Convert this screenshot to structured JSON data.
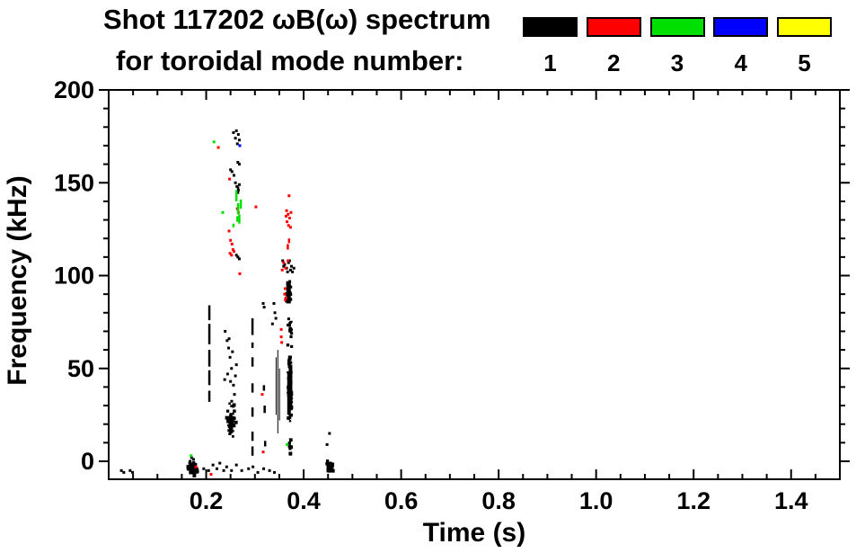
{
  "header": {
    "title": "Shot 117202 ωB(ω) spectrum",
    "subtitle": "for toroidal mode number:"
  },
  "legend": {
    "entries": [
      {
        "label": "1",
        "color": "#000000"
      },
      {
        "label": "2",
        "color": "#ff0000"
      },
      {
        "label": "3",
        "color": "#00e000"
      },
      {
        "label": "4",
        "color": "#0000ff"
      },
      {
        "label": "5",
        "color": "#ffff00"
      }
    ]
  },
  "chart_data": {
    "type": "scatter",
    "title": "Shot 117202 ωB(ω) spectrum",
    "subtitle": "for toroidal mode number:",
    "xlabel": "Time (s)",
    "ylabel": "Frequency (kHz)",
    "xlim": [
      0,
      1.5
    ],
    "ylim": [
      -9.7,
      200
    ],
    "grid": false,
    "legend_position": "top-right-above-plot",
    "x_major_ticks": [
      0.2,
      0.4,
      0.6,
      0.8,
      1.0,
      1.2,
      1.4
    ],
    "x_tick_labels": [
      "0.2",
      "0.4",
      "0.6",
      "0.8",
      "1.0",
      "1.2",
      "1.4"
    ],
    "x_minor_step": 0.05,
    "y_major_ticks": [
      0,
      50,
      100,
      150,
      200
    ],
    "y_tick_labels": [
      "0",
      "50",
      "100",
      "150",
      "200"
    ],
    "y_minor_step": 10,
    "series": [
      {
        "name": "1",
        "color": "#000000",
        "points": [
          [
            0.256,
            177
          ],
          [
            0.262,
            178
          ],
          [
            0.266,
            176
          ],
          [
            0.268,
            173
          ],
          [
            0.26,
            174
          ],
          [
            0.264,
            171
          ],
          [
            0.265,
            161
          ],
          [
            0.268,
            160
          ],
          [
            0.25,
            157
          ],
          [
            0.253,
            156
          ],
          [
            0.257,
            154
          ],
          [
            0.26,
            150
          ],
          [
            0.263,
            148
          ],
          [
            0.266,
            146
          ],
          [
            0.268,
            149
          ],
          [
            0.262,
            111
          ],
          [
            0.265,
            110
          ],
          [
            0.268,
            109
          ],
          [
            0.357,
            108
          ],
          [
            0.361,
            106
          ],
          [
            0.365,
            104
          ],
          [
            0.369,
            107
          ],
          [
            0.373,
            103
          ],
          [
            0.367,
            102
          ],
          [
            0.359,
            105
          ],
          [
            0.375,
            105
          ],
          [
            0.371,
            108
          ],
          [
            0.377,
            102
          ],
          [
            0.38,
            104
          ],
          [
            0.317,
            85
          ],
          [
            0.319,
            83
          ],
          [
            0.339,
            85
          ],
          [
            0.341,
            80
          ],
          [
            0.343,
            77
          ],
          [
            0.336,
            74
          ],
          [
            0.239,
            70
          ],
          [
            0.247,
            66
          ],
          [
            0.243,
            65
          ],
          [
            0.246,
            61
          ],
          [
            0.254,
            59
          ],
          [
            0.249,
            56
          ],
          [
            0.252,
            50
          ],
          [
            0.244,
            47
          ],
          [
            0.238,
            44
          ],
          [
            0.25,
            43
          ],
          [
            0.256,
            41
          ],
          [
            0.26,
            46
          ],
          [
            0.262,
            52
          ],
          [
            0.258,
            36
          ],
          [
            0.17,
            2
          ],
          [
            0.167,
            0
          ],
          [
            0.174,
            1
          ],
          [
            0.026,
            -5
          ],
          [
            0.031,
            -6
          ],
          [
            0.044,
            -5
          ],
          [
            0.049,
            -6
          ],
          [
            0.195,
            -4
          ],
          [
            0.205,
            -5
          ],
          [
            0.214,
            -2
          ],
          [
            0.222,
            -4
          ],
          [
            0.228,
            -1
          ],
          [
            0.236,
            -5
          ],
          [
            0.242,
            -3
          ],
          [
            0.252,
            -5
          ],
          [
            0.262,
            -2
          ],
          [
            0.273,
            -5
          ],
          [
            0.287,
            -4
          ],
          [
            0.296,
            -3
          ],
          [
            0.306,
            -6
          ],
          [
            0.318,
            -4
          ],
          [
            0.33,
            -5
          ],
          [
            0.34,
            -6
          ],
          [
            0.453,
            15
          ],
          [
            0.448,
            9
          ]
        ],
        "segments": [
          [
            0.2065,
            76,
            84
          ],
          [
            0.2065,
            63,
            74
          ],
          [
            0.2065,
            51,
            60
          ],
          [
            0.2065,
            41,
            49
          ],
          [
            0.2065,
            32,
            38
          ],
          [
            0.295,
            68,
            77
          ],
          [
            0.295,
            61,
            64
          ],
          [
            0.295,
            51,
            56
          ],
          [
            0.295,
            37,
            42
          ],
          [
            0.295,
            24,
            29
          ],
          [
            0.295,
            11,
            16
          ],
          [
            0.295,
            3,
            8
          ],
          [
            0.3185,
            38,
            41
          ],
          [
            0.32,
            26,
            30
          ],
          [
            0.321,
            8,
            11
          ],
          [
            0.3435,
            25,
            56,
            1
          ],
          [
            0.347,
            15,
            60,
            1
          ],
          [
            0.3505,
            22,
            50,
            1
          ],
          [
            0.2655,
            144,
            148
          ],
          [
            0.369,
            85,
            97,
            5
          ],
          [
            0.37,
            25,
            48,
            4
          ],
          [
            0.373,
            30,
            52,
            4
          ],
          [
            0.172,
            -7,
            -1,
            8
          ],
          [
            0.4535,
            -6,
            -1,
            7
          ]
        ],
        "clusters": [
          [
            0.369,
            91,
            0.006,
            7,
            26
          ],
          [
            0.372,
            70,
            0.005,
            9,
            16
          ],
          [
            0.3715,
            38,
            0.0055,
            21,
            70
          ],
          [
            0.372,
            8,
            0.004,
            6,
            12
          ],
          [
            0.252,
            22,
            0.011,
            11,
            48
          ],
          [
            0.249,
            20,
            0.005,
            6,
            22
          ],
          [
            0.172,
            -4,
            0.013,
            4,
            45
          ],
          [
            0.4535,
            -3,
            0.008,
            3.5,
            32
          ]
        ]
      },
      {
        "name": "2",
        "color": "#ff0000",
        "points": [
          [
            0.225,
            169
          ],
          [
            0.248,
            152
          ],
          [
            0.247,
            124
          ],
          [
            0.25,
            119
          ],
          [
            0.253,
            117
          ],
          [
            0.255,
            114
          ],
          [
            0.249,
            112
          ],
          [
            0.257,
            113
          ],
          [
            0.252,
            111
          ],
          [
            0.264,
            136
          ],
          [
            0.266,
            134
          ],
          [
            0.302,
            137
          ],
          [
            0.269,
            101
          ],
          [
            0.37,
            143
          ],
          [
            0.365,
            135
          ],
          [
            0.368,
            133
          ],
          [
            0.371,
            131
          ],
          [
            0.366,
            129
          ],
          [
            0.369,
            127
          ],
          [
            0.373,
            126
          ],
          [
            0.364,
            132
          ],
          [
            0.374,
            134
          ],
          [
            0.359,
            107
          ],
          [
            0.368,
            108
          ],
          [
            0.363,
            104
          ],
          [
            0.356,
            103
          ],
          [
            0.362,
            93
          ],
          [
            0.361,
            90
          ],
          [
            0.3625,
            87
          ],
          [
            0.3635,
            88
          ],
          [
            0.354,
            71
          ],
          [
            0.354,
            67
          ],
          [
            0.355,
            64
          ],
          [
            0.315,
            36
          ],
          [
            0.317,
            5
          ],
          [
            0.179,
            -3
          ],
          [
            0.21,
            -7
          ]
        ],
        "segments": [
          [
            0.3675,
            114,
            117
          ],
          [
            0.37,
            117.5,
            120
          ]
        ],
        "clusters": []
      },
      {
        "name": "3",
        "color": "#00e000",
        "points": [
          [
            0.216,
            172
          ],
          [
            0.234,
            134
          ],
          [
            0.169,
            3
          ],
          [
            0.366,
            9
          ]
        ],
        "segments": [
          [
            0.262,
            140,
            146
          ],
          [
            0.2655,
            133,
            139
          ],
          [
            0.268,
            128,
            133
          ],
          [
            0.271,
            136,
            141
          ],
          [
            0.264,
            129,
            132
          ],
          [
            0.256,
            126,
            128
          ]
        ],
        "clusters": []
      },
      {
        "name": "4",
        "color": "#0000ff",
        "points": [
          [
            0.269,
            170
          ]
        ],
        "segments": [],
        "clusters": []
      },
      {
        "name": "5",
        "color": "#ffff00",
        "points": [],
        "segments": [],
        "clusters": []
      }
    ]
  }
}
